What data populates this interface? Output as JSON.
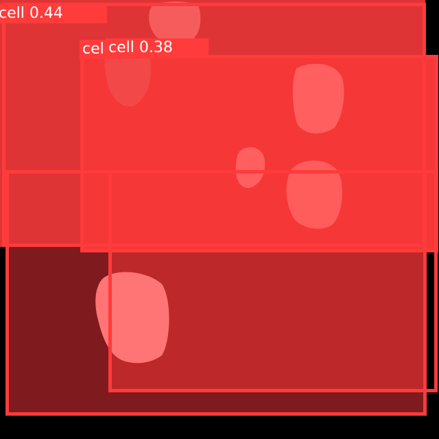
{
  "image": {
    "background_color": "#000000",
    "description_colors": {
      "box_stroke": "#ff3b3b",
      "fill_dark": "#7f1b1e",
      "fill_mid": "#bd282a",
      "fill_light": "#f63737",
      "cell_pink": "#ff6b6b"
    }
  },
  "detections": [
    {
      "label": "cell",
      "score": "0.44",
      "text": "cell 0.44"
    },
    {
      "label": "cell",
      "score": "0.38",
      "text": "cell 0.38"
    },
    {
      "label": "cell",
      "score": "",
      "text": "cel"
    },
    {
      "label": "cell",
      "score": "",
      "text": ""
    }
  ]
}
